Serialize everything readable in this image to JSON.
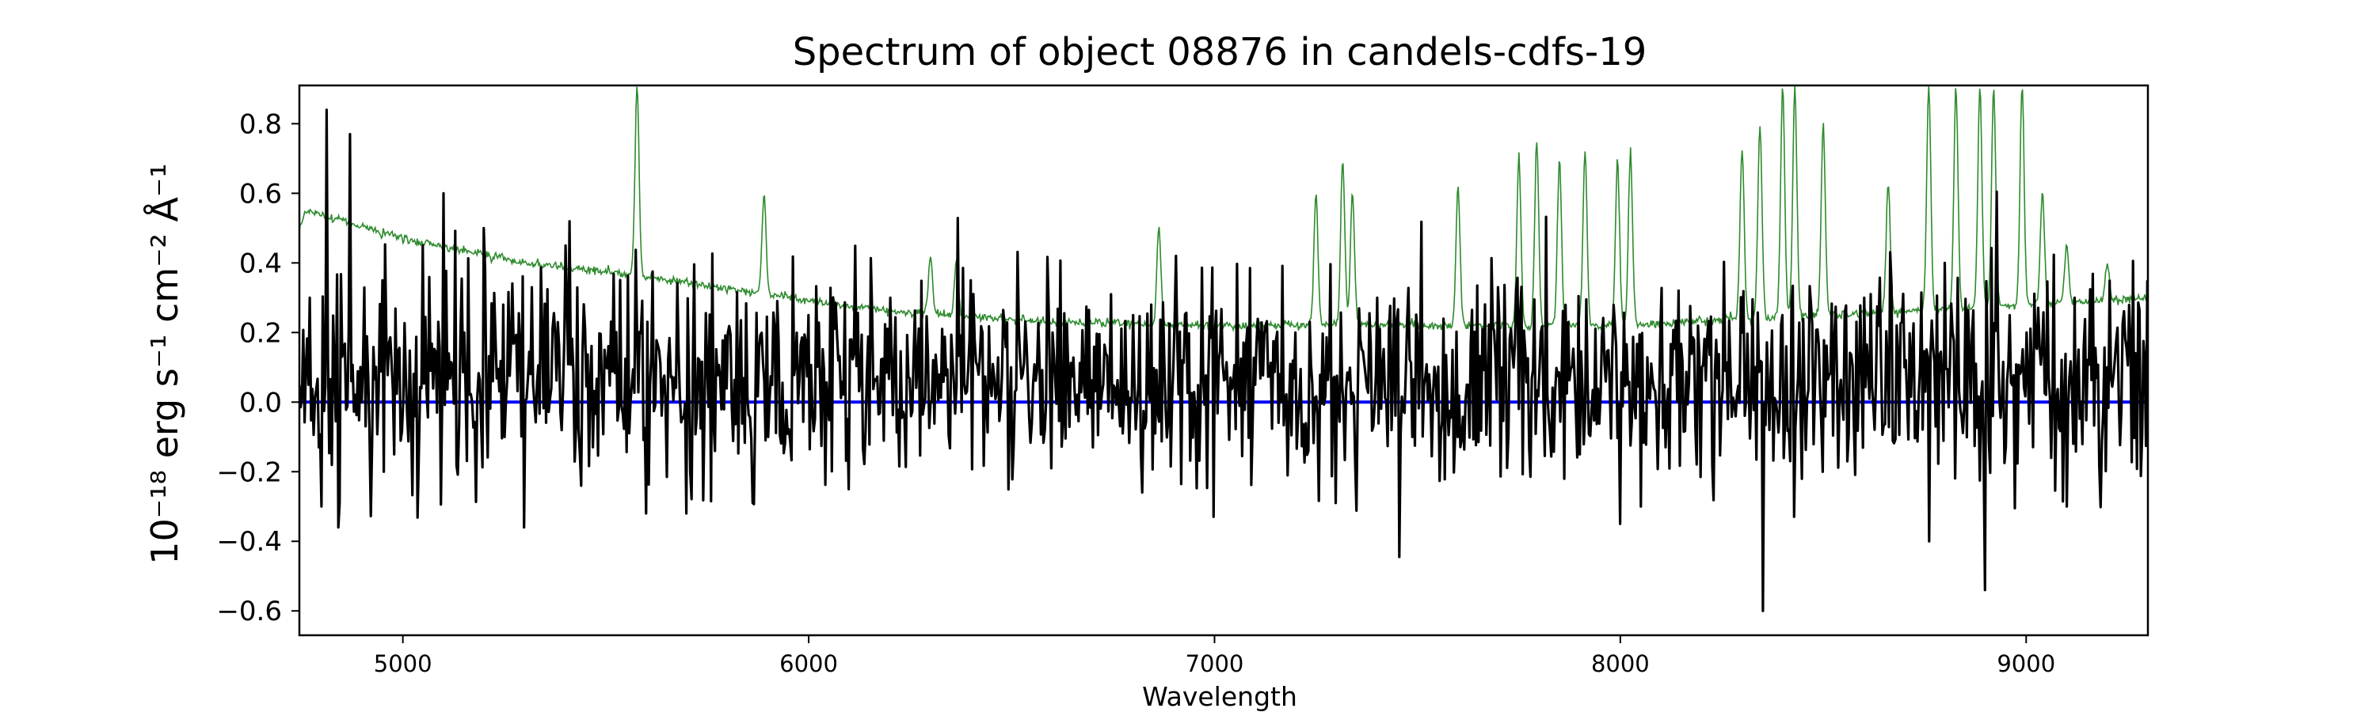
{
  "chart_data": {
    "type": "line",
    "title": "Spectrum of object 08876 in candels-cdfs-19",
    "xlabel": "Wavelength",
    "ylabel": "10⁻¹⁸ erg s⁻¹ cm⁻² Å⁻¹",
    "xlim": [
      4745,
      9300
    ],
    "ylim": [
      -0.67,
      0.91
    ],
    "xticks": [
      5000,
      6000,
      7000,
      8000,
      9000
    ],
    "yticks": [
      -0.6,
      -0.4,
      -0.2,
      0.0,
      0.2,
      0.4,
      0.6,
      0.8
    ],
    "ytick_labels": [
      "−0.6",
      "−0.4",
      "−0.2",
      "0.0",
      "0.2",
      "0.4",
      "0.6",
      "0.8"
    ],
    "grid": false,
    "legend": "none",
    "series": [
      {
        "role": "flux",
        "color": "#000000",
        "x_range": [
          4745,
          9300
        ],
        "envelope_points": [
          [
            4745,
            0.05
          ],
          [
            4770,
            0.3
          ],
          [
            4800,
            -0.3
          ],
          [
            4812,
            0.84
          ],
          [
            4830,
            0.1
          ],
          [
            4845,
            -0.29
          ],
          [
            4870,
            0.77
          ],
          [
            4900,
            0.0
          ],
          [
            4950,
            0.35
          ],
          [
            4980,
            -0.15
          ],
          [
            5050,
            0.45
          ],
          [
            5100,
            0.6
          ],
          [
            5150,
            0.2
          ],
          [
            5200,
            0.5
          ],
          [
            5250,
            -0.1
          ],
          [
            5300,
            -0.36
          ],
          [
            5400,
            0.45
          ],
          [
            5500,
            0.1
          ],
          [
            5600,
            -0.32
          ],
          [
            5700,
            -0.32
          ],
          [
            5800,
            0.2
          ],
          [
            5900,
            -0.1
          ],
          [
            6000,
            0.25
          ],
          [
            6100,
            -0.25
          ],
          [
            6200,
            0.3
          ],
          [
            6300,
            0.0
          ],
          [
            6400,
            0.35
          ],
          [
            6500,
            0.1
          ],
          [
            6600,
            0.2
          ],
          [
            6700,
            -0.13
          ],
          [
            6800,
            0.25
          ],
          [
            6900,
            0.1
          ],
          [
            7000,
            0.2
          ],
          [
            7100,
            0.05
          ],
          [
            7200,
            0.2
          ],
          [
            7300,
            -0.29
          ],
          [
            7400,
            0.3
          ],
          [
            7500,
            0.2
          ],
          [
            7600,
            -0.1
          ],
          [
            7700,
            0.33
          ],
          [
            7800,
            0.1
          ],
          [
            7900,
            -0.15
          ],
          [
            8000,
            -0.35
          ],
          [
            8050,
            -0.3
          ],
          [
            8100,
            0.2
          ],
          [
            8200,
            0.1
          ],
          [
            8300,
            0.2
          ],
          [
            8350,
            -0.6
          ],
          [
            8400,
            0.25
          ],
          [
            8500,
            -0.2
          ],
          [
            8600,
            0.3
          ],
          [
            8700,
            0.1
          ],
          [
            8760,
            -0.4
          ],
          [
            8800,
            0.4
          ],
          [
            8900,
            -0.54
          ],
          [
            9000,
            0.2
          ],
          [
            9100,
            -0.3
          ],
          [
            9200,
            0.1
          ],
          [
            9300,
            0.35
          ]
        ],
        "rms": 0.15
      },
      {
        "role": "error",
        "color": "#2e8b2e",
        "x_range": [
          4745,
          9300
        ],
        "continuum": [
          [
            4745,
            0.5
          ],
          [
            4760,
            0.55
          ],
          [
            4800,
            0.54
          ],
          [
            5000,
            0.47
          ],
          [
            5300,
            0.4
          ],
          [
            5600,
            0.36
          ],
          [
            5900,
            0.31
          ],
          [
            6200,
            0.26
          ],
          [
            6600,
            0.23
          ],
          [
            7000,
            0.22
          ],
          [
            7300,
            0.22
          ],
          [
            7600,
            0.22
          ],
          [
            8000,
            0.22
          ],
          [
            8300,
            0.24
          ],
          [
            8700,
            0.26
          ],
          [
            9000,
            0.28
          ],
          [
            9300,
            0.3
          ]
        ],
        "emission_lines": [
          [
            5577,
            0.91
          ],
          [
            5890,
            0.6
          ],
          [
            6300,
            0.42
          ],
          [
            6364,
            0.4
          ],
          [
            6863,
            0.5
          ],
          [
            7250,
            0.6
          ],
          [
            7316,
            0.7
          ],
          [
            7340,
            0.6
          ],
          [
            7600,
            0.62
          ],
          [
            7750,
            0.7
          ],
          [
            7794,
            0.75
          ],
          [
            7850,
            0.7
          ],
          [
            7913,
            0.72
          ],
          [
            7993,
            0.7
          ],
          [
            8025,
            0.72
          ],
          [
            8300,
            0.73
          ],
          [
            8344,
            0.8
          ],
          [
            8400,
            0.91
          ],
          [
            8430,
            0.91
          ],
          [
            8500,
            0.8
          ],
          [
            8660,
            0.63
          ],
          [
            8760,
            0.91
          ],
          [
            8827,
            0.91
          ],
          [
            8886,
            0.91
          ],
          [
            8920,
            0.91
          ],
          [
            8990,
            0.91
          ],
          [
            9040,
            0.6
          ],
          [
            9100,
            0.45
          ],
          [
            9200,
            0.4
          ]
        ]
      },
      {
        "role": "zero",
        "color": "#0000ff",
        "x": [
          4745,
          9300
        ],
        "y": [
          0.0,
          0.0
        ]
      }
    ]
  }
}
